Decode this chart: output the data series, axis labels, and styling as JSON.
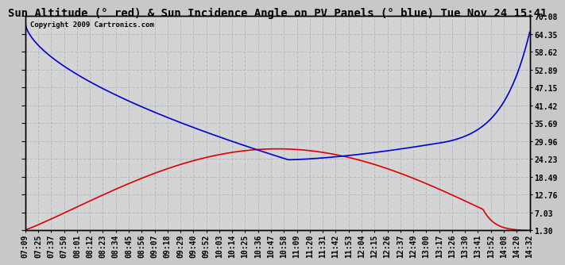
{
  "title": "Sun Altitude (° red) & Sun Incidence Angle on PV Panels (° blue) Tue Nov 24 15:41",
  "copyright": "Copyright 2009 Cartronics.com",
  "y_ticks": [
    1.3,
    7.03,
    12.76,
    18.49,
    24.23,
    29.96,
    35.69,
    41.42,
    47.15,
    52.89,
    58.62,
    64.35,
    70.08
  ],
  "x_labels": [
    "07:09",
    "07:25",
    "07:37",
    "07:50",
    "08:01",
    "08:12",
    "08:23",
    "08:34",
    "08:45",
    "08:56",
    "09:07",
    "09:18",
    "09:29",
    "09:40",
    "09:52",
    "10:03",
    "10:14",
    "10:25",
    "10:36",
    "10:47",
    "10:58",
    "11:09",
    "11:20",
    "11:31",
    "11:42",
    "11:53",
    "12:04",
    "12:15",
    "12:26",
    "12:37",
    "12:49",
    "13:00",
    "13:17",
    "13:26",
    "13:30",
    "13:41",
    "13:52",
    "14:08",
    "14:20",
    "14:32"
  ],
  "background_color": "#c8c8c8",
  "plot_bg_color": "#d4d4d4",
  "grid_color": "#b0b8c8",
  "red_color": "#dd0000",
  "blue_color": "#0000cc",
  "title_fontsize": 10,
  "tick_fontsize": 7,
  "ylim": [
    1.3,
    70.08
  ]
}
